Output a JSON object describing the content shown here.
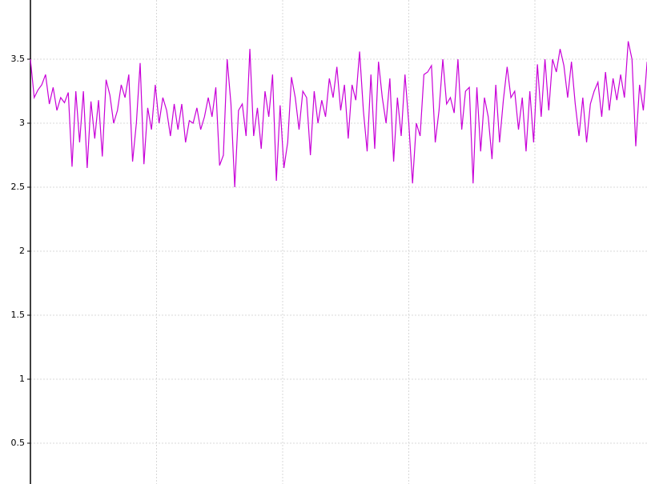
{
  "chart_data": {
    "type": "line",
    "x": [
      0,
      3,
      6,
      9,
      12,
      15,
      18,
      21,
      24,
      27,
      30,
      33,
      36,
      39,
      42,
      45,
      48,
      51,
      54,
      57,
      60,
      63,
      66,
      69,
      72,
      75,
      78,
      81,
      84,
      87,
      90,
      93,
      96,
      99,
      102,
      105,
      108,
      111,
      114,
      117,
      120,
      123,
      126,
      129,
      132,
      135,
      138,
      141,
      144,
      147,
      150,
      153,
      156,
      159,
      162,
      165,
      168,
      171,
      174,
      177,
      180,
      183,
      186,
      189,
      192,
      195,
      198,
      201,
      204,
      207,
      210,
      213,
      216,
      219,
      222,
      225,
      228,
      231,
      234,
      237,
      240,
      243,
      246,
      249,
      252,
      255,
      258,
      261,
      264,
      267,
      270,
      273,
      276,
      279,
      282,
      285,
      288,
      291,
      294,
      297,
      300,
      303,
      306,
      309,
      312,
      315,
      318,
      321,
      324,
      327,
      330,
      333,
      336,
      339,
      342,
      345,
      348,
      351,
      354,
      357,
      360,
      363,
      366,
      369,
      372,
      375,
      378,
      381,
      384,
      387,
      390,
      393,
      396,
      399,
      402,
      405,
      408,
      411,
      414,
      417,
      420,
      423,
      426,
      429,
      432,
      435,
      438,
      441,
      444,
      447,
      450,
      453,
      456,
      459,
      462,
      465,
      468,
      471,
      474,
      477,
      480,
      483,
      486,
      489
    ],
    "series": [
      {
        "color": "#c800d8",
        "values": [
          3.5,
          3.2,
          3.26,
          3.3,
          3.38,
          3.15,
          3.28,
          3.1,
          3.2,
          3.16,
          3.24,
          2.66,
          3.25,
          2.85,
          3.25,
          2.65,
          3.17,
          2.88,
          3.18,
          2.74,
          3.34,
          3.22,
          3.0,
          3.1,
          3.3,
          3.2,
          3.38,
          2.7,
          3.0,
          3.47,
          2.68,
          3.12,
          2.95,
          3.3,
          3.0,
          3.2,
          3.1,
          2.9,
          3.15,
          2.95,
          3.15,
          2.85,
          3.02,
          3.0,
          3.12,
          2.95,
          3.05,
          3.2,
          3.05,
          3.28,
          2.67,
          2.75,
          3.5,
          3.15,
          2.5,
          3.1,
          3.15,
          2.9,
          3.58,
          2.9,
          3.12,
          2.8,
          3.25,
          3.05,
          3.38,
          2.55,
          3.14,
          2.65,
          2.85,
          3.36,
          3.2,
          2.95,
          3.25,
          3.2,
          2.75,
          3.25,
          3.0,
          3.18,
          3.05,
          3.35,
          3.2,
          3.44,
          3.1,
          3.3,
          2.88,
          3.3,
          3.18,
          3.56,
          3.1,
          2.78,
          3.38,
          2.8,
          3.48,
          3.2,
          3.0,
          3.35,
          2.7,
          3.2,
          2.9,
          3.38,
          3.0,
          2.53,
          3.0,
          2.9,
          3.38,
          3.4,
          3.45,
          2.85,
          3.1,
          3.5,
          3.15,
          3.2,
          3.08,
          3.5,
          2.95,
          3.25,
          3.28,
          2.53,
          3.28,
          2.78,
          3.2,
          3.05,
          2.72,
          3.3,
          2.85,
          3.18,
          3.44,
          3.2,
          3.25,
          2.95,
          3.2,
          2.78,
          3.25,
          2.85,
          3.46,
          3.05,
          3.5,
          3.1,
          3.5,
          3.4,
          3.58,
          3.45,
          3.2,
          3.48,
          3.15,
          2.9,
          3.2,
          2.85,
          3.15,
          3.25,
          3.32,
          3.05,
          3.4,
          3.1,
          3.35,
          3.18,
          3.38,
          3.2,
          3.64,
          3.5,
          2.82,
          3.3,
          3.1,
          3.48
        ]
      }
    ],
    "xlim": [
      0,
      488.9
    ],
    "xticks": [
      100,
      200,
      300,
      400
    ],
    "ylim": [
      0.18125,
      3.9625
    ],
    "yticks": [
      0.5,
      1,
      1.5,
      2,
      2.5,
      3,
      3.5
    ],
    "grid": true
  }
}
